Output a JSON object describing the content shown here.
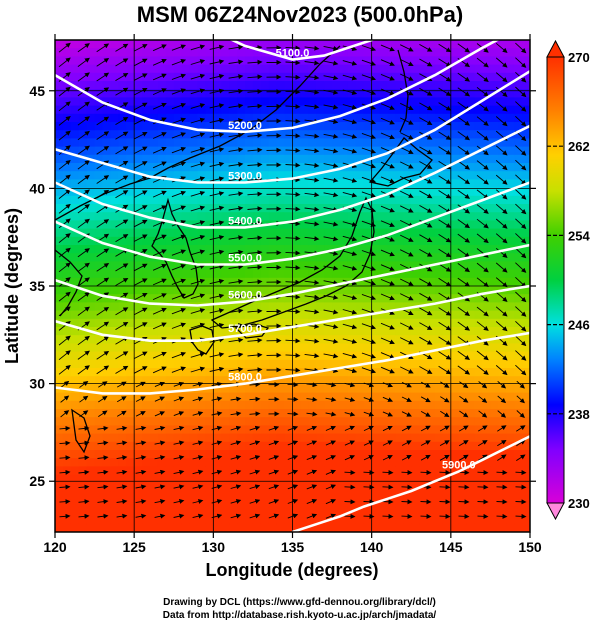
{
  "chart_data": {
    "type": "heatmap",
    "title": "MSM 06Z24Nov2023 (500.0hPa)",
    "xlabel": "Longitude (degrees)",
    "ylabel": "Latitude  (degrees)",
    "xlim": [
      120,
      150
    ],
    "ylim": [
      22.4,
      47.6
    ],
    "x_ticks": [
      "120",
      "125",
      "130",
      "135",
      "140",
      "145",
      "150"
    ],
    "x_tick_values": [
      120,
      125,
      130,
      135,
      140,
      145,
      150
    ],
    "y_ticks": [
      "25",
      "30",
      "35",
      "40",
      "45"
    ],
    "y_tick_values": [
      25,
      30,
      35,
      40,
      45
    ],
    "colorbar": {
      "range": [
        230,
        270
      ],
      "tick_labels": [
        "230",
        "238",
        "246",
        "254",
        "262",
        "270"
      ],
      "tick_values": [
        230,
        238,
        246,
        254,
        262,
        270
      ],
      "colormap": "rainbow (magenta → blue → cyan → green → yellow → orange → red)"
    },
    "shaded_field": "temperature",
    "contours": [
      {
        "label": "5100.0",
        "value": 5100,
        "lons": [
          120,
          124,
          128,
          132,
          135,
          137,
          140,
          143,
          146,
          150
        ],
        "lats": [
          49.8,
          49.5,
          48.8,
          47.3,
          46.6,
          46.8,
          47.6,
          48.8,
          49.6,
          49.9
        ]
      },
      {
        "label": "5200.0",
        "value": 5200,
        "lons": [
          120,
          123,
          126,
          129,
          132,
          135,
          138,
          141,
          144,
          147,
          150
        ],
        "lats": [
          45.8,
          44.4,
          43.5,
          43.0,
          42.9,
          43.1,
          43.7,
          44.6,
          45.8,
          47.2,
          48.5
        ]
      },
      {
        "label": "5300.0",
        "value": 5300,
        "lons": [
          120,
          123,
          126,
          129,
          132,
          135,
          138,
          141,
          144,
          147,
          150
        ],
        "lats": [
          42.0,
          41.3,
          40.6,
          40.3,
          40.3,
          40.5,
          41.0,
          41.8,
          43.0,
          44.5,
          46.0
        ]
      },
      {
        "label": "5400.0",
        "value": 5400,
        "lons": [
          120,
          123,
          126,
          129,
          132,
          135,
          138,
          141,
          144,
          147,
          150
        ],
        "lats": [
          40.3,
          39.2,
          38.5,
          38.0,
          38.0,
          38.3,
          38.9,
          39.7,
          40.8,
          42.0,
          43.2
        ]
      },
      {
        "label": "5500.0",
        "value": 5500,
        "lons": [
          120,
          123,
          126,
          129,
          132,
          135,
          138,
          141,
          144,
          147,
          150
        ],
        "lats": [
          38.3,
          37.2,
          36.5,
          36.1,
          36.1,
          36.4,
          36.9,
          37.6,
          38.5,
          39.4,
          40.3
        ]
      },
      {
        "label": "5600.0",
        "value": 5600,
        "lons": [
          120,
          123,
          126,
          129,
          132,
          135,
          138,
          141,
          144,
          147,
          150
        ],
        "lats": [
          35.3,
          34.5,
          34.1,
          34.0,
          34.2,
          34.6,
          35.1,
          35.6,
          36.1,
          36.6,
          37.1
        ]
      },
      {
        "label": "5700.0",
        "value": 5700,
        "lons": [
          120,
          123,
          126,
          129,
          132,
          135,
          138,
          141,
          144,
          147,
          150
        ],
        "lats": [
          33.2,
          32.5,
          32.2,
          32.2,
          32.5,
          32.9,
          33.3,
          33.7,
          34.1,
          34.6,
          35.0
        ]
      },
      {
        "label": "5800.0",
        "value": 5800,
        "lons": [
          120,
          123,
          126,
          129,
          132,
          135,
          138,
          141,
          144,
          147,
          150
        ],
        "lats": [
          29.8,
          29.5,
          29.5,
          29.7,
          30.0,
          30.4,
          30.8,
          31.2,
          31.7,
          32.2,
          32.6
        ]
      },
      {
        "label": "5900.0",
        "value": 5900,
        "lons": [
          135,
          136.5,
          138,
          139.5,
          141,
          142.5,
          144,
          145.5,
          147,
          148.5,
          150
        ],
        "lats": [
          22.4,
          22.8,
          23.2,
          23.7,
          24.1,
          24.5,
          25.0,
          25.5,
          26.1,
          26.7,
          27.3
        ]
      }
    ],
    "grid": true,
    "coastlines": true,
    "wind_vectors": true
  },
  "credits": {
    "line1": "Drawing by DCL (https://www.gfd-dennou.org/library/dcl/)",
    "line2": "Data from http://database.rish.kyoto-u.ac.jp/arch/jmadata/"
  },
  "colors": {
    "contour": "#ffffff",
    "frame": "#000000",
    "vector": "#000000"
  }
}
